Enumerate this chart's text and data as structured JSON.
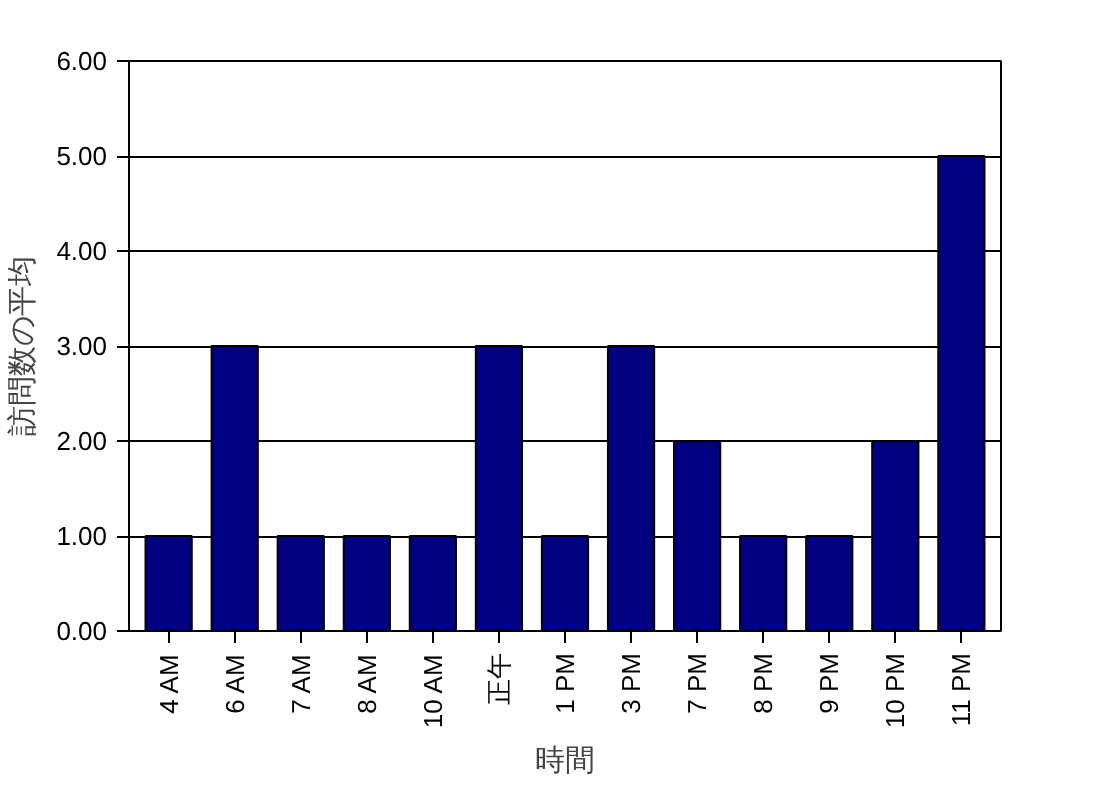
{
  "chart_data": {
    "type": "bar",
    "xlabel": "時間",
    "ylabel": "訪問数の平均",
    "categories": [
      "4 AM",
      "6 AM",
      "7 AM",
      "8 AM",
      "10 AM",
      "正午",
      "1 PM",
      "3 PM",
      "7 PM",
      "8 PM",
      "9 PM",
      "10 PM",
      "11 PM"
    ],
    "values": [
      1,
      3,
      1,
      1,
      1,
      3,
      1,
      3,
      2,
      1,
      1,
      2,
      5
    ],
    "color": "#000080",
    "ylim": [
      0,
      6
    ],
    "yticks": [
      {
        "value": 0,
        "label": "0.00"
      },
      {
        "value": 1,
        "label": "1.00"
      },
      {
        "value": 2,
        "label": "2.00"
      },
      {
        "value": 3,
        "label": "3.00"
      },
      {
        "value": 4,
        "label": "4.00"
      },
      {
        "value": 5,
        "label": "5.00"
      },
      {
        "value": 6,
        "label": "6.00"
      }
    ],
    "grid": "y"
  }
}
